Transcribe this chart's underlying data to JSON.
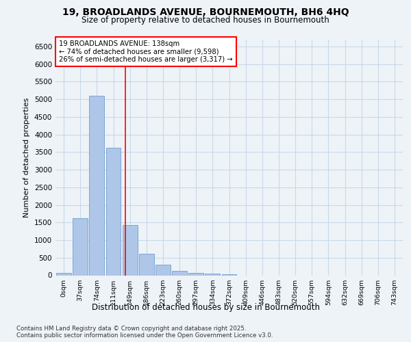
{
  "title_line1": "19, BROADLANDS AVENUE, BOURNEMOUTH, BH6 4HQ",
  "title_line2": "Size of property relative to detached houses in Bournemouth",
  "xlabel": "Distribution of detached houses by size in Bournemouth",
  "ylabel": "Number of detached properties",
  "bar_labels": [
    "0sqm",
    "37sqm",
    "74sqm",
    "111sqm",
    "149sqm",
    "186sqm",
    "223sqm",
    "260sqm",
    "297sqm",
    "334sqm",
    "372sqm",
    "409sqm",
    "446sqm",
    "483sqm",
    "520sqm",
    "557sqm",
    "594sqm",
    "632sqm",
    "669sqm",
    "706sqm",
    "743sqm"
  ],
  "bar_values": [
    75,
    1620,
    5100,
    3620,
    1420,
    610,
    310,
    130,
    75,
    40,
    20,
    0,
    0,
    0,
    0,
    0,
    0,
    0,
    0,
    0,
    0
  ],
  "bar_color": "#aec6e8",
  "bar_edge_color": "#7ba7d4",
  "grid_color": "#c8d8e8",
  "background_color": "#eef3f8",
  "annotation_text": "19 BROADLANDS AVENUE: 138sqm\n← 74% of detached houses are smaller (9,598)\n26% of semi-detached houses are larger (3,317) →",
  "vline_x": 3.72,
  "ylim": [
    0,
    6700
  ],
  "yticks": [
    0,
    500,
    1000,
    1500,
    2000,
    2500,
    3000,
    3500,
    4000,
    4500,
    5000,
    5500,
    6000,
    6500
  ],
  "footnote": "Contains HM Land Registry data © Crown copyright and database right 2025.\nContains public sector information licensed under the Open Government Licence v3.0."
}
